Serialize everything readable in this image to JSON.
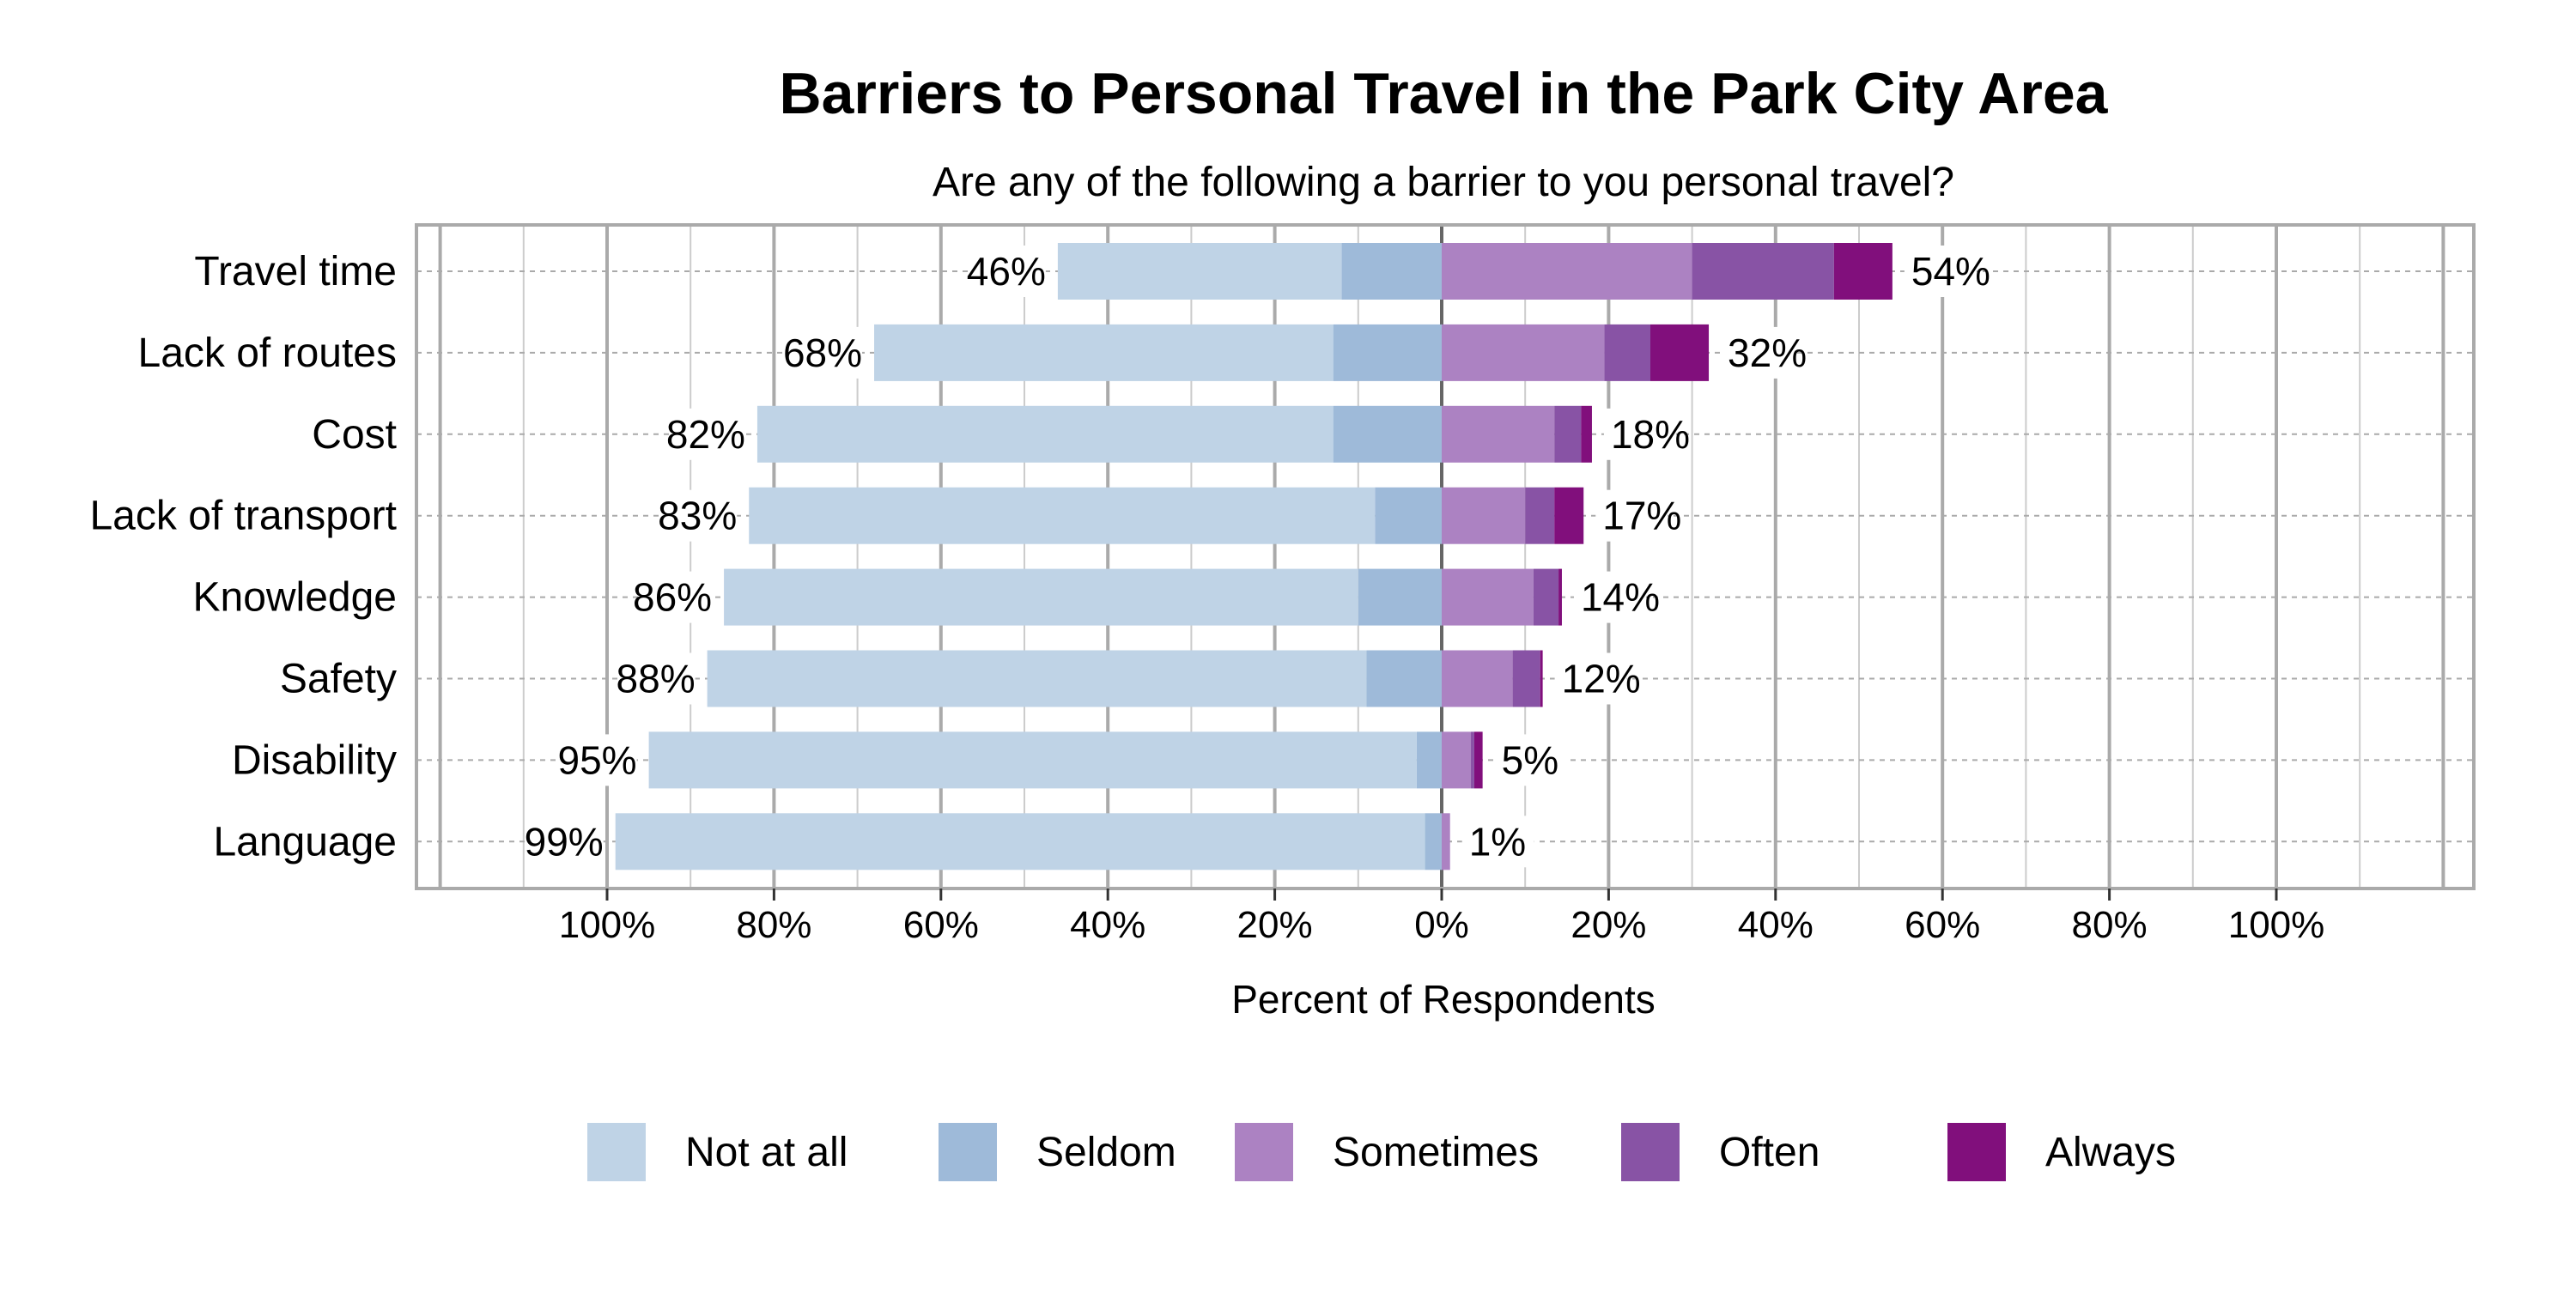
{
  "chart_data": {
    "type": "bar",
    "orientation": "horizontal",
    "stacked": "diverging",
    "title": "Barriers to Personal Travel in the Park City Area",
    "subtitle": "Are any of the following a barrier to you personal travel?",
    "xlabel": "Percent of Respondents",
    "ylabel": "",
    "xlim": [
      -100,
      100
    ],
    "x_ticks": [
      "100%",
      "80%",
      "60%",
      "40%",
      "20%",
      "0%",
      "20%",
      "40%",
      "60%",
      "80%",
      "100%"
    ],
    "grid": true,
    "legend_position": "bottom",
    "categories": [
      "Travel time",
      "Lack of routes",
      "Cost",
      "Lack of transport",
      "Knowledge",
      "Safety",
      "Disability",
      "Language"
    ],
    "series": [
      {
        "name": "Not at all",
        "side": "negative",
        "color": "#bfd3e6",
        "values": [
          34,
          55,
          69,
          75,
          76,
          79,
          92,
          97
        ]
      },
      {
        "name": "Seldom",
        "side": "negative",
        "color": "#9ebad9",
        "values": [
          12,
          13,
          13,
          8,
          10,
          9,
          3,
          2
        ]
      },
      {
        "name": "Sometimes",
        "side": "positive",
        "color": "#ac82c2",
        "values": [
          30,
          19.5,
          13.5,
          10,
          11,
          8.5,
          3.5,
          1
        ]
      },
      {
        "name": "Often",
        "side": "positive",
        "color": "#8853a5",
        "values": [
          17,
          5.5,
          3.2,
          3.5,
          3,
          3.3,
          0.4,
          0
        ]
      },
      {
        "name": "Always",
        "side": "positive",
        "color": "#810f7c",
        "values": [
          7,
          7,
          1.3,
          3.5,
          0.4,
          0.3,
          1,
          0
        ]
      }
    ],
    "negative_labels": [
      "46%",
      "68%",
      "82%",
      "83%",
      "86%",
      "88%",
      "95%",
      "99%"
    ],
    "positive_labels": [
      "54%",
      "32%",
      "18%",
      "17%",
      "14%",
      "12%",
      "5%",
      "1%"
    ]
  }
}
